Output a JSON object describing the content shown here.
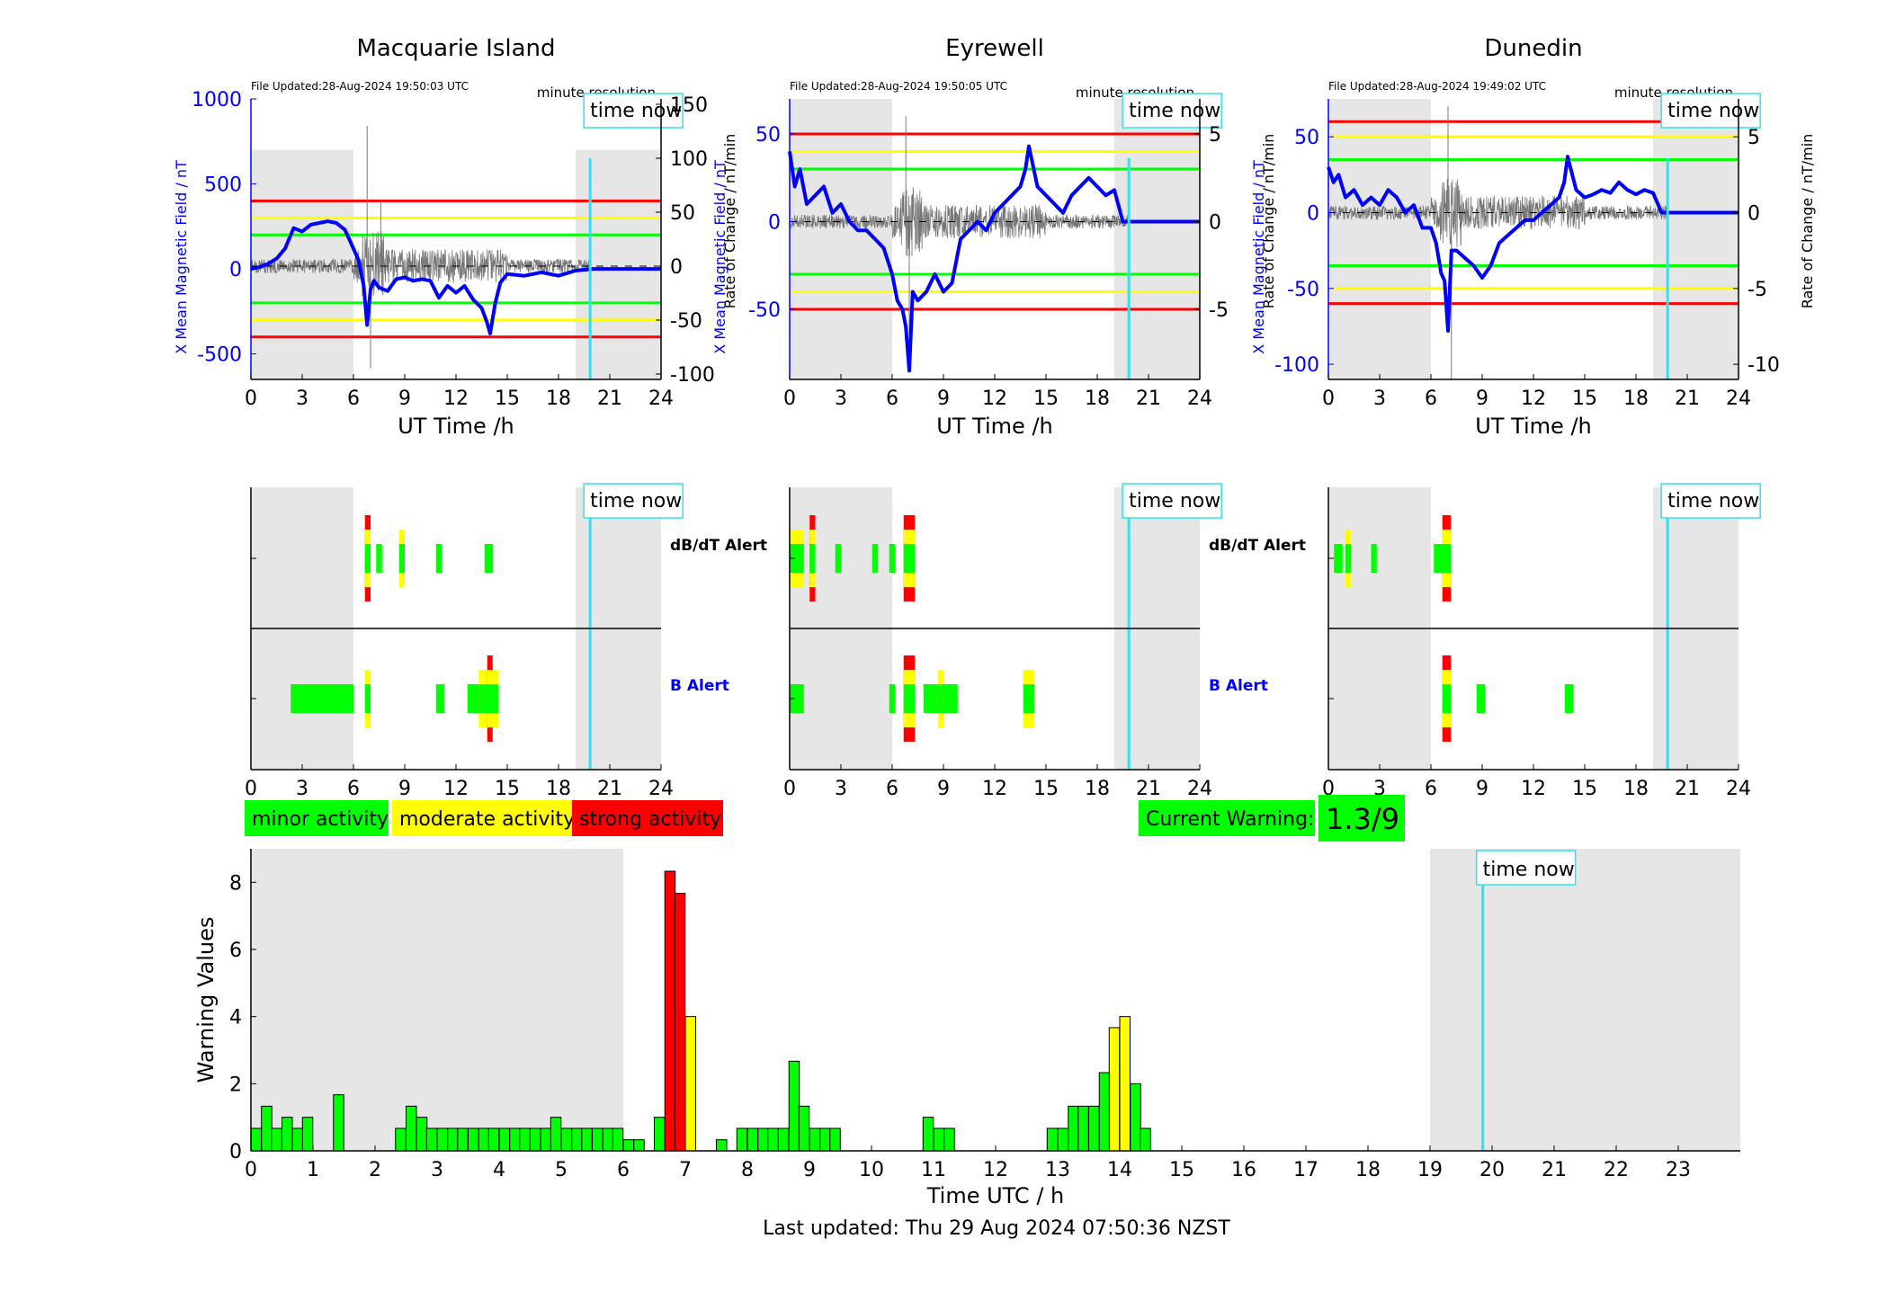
{
  "stations": [
    {
      "name": "Macquarie Island",
      "file_updated": "File Updated:28-Aug-2024 19:50:03 UTC"
    },
    {
      "name": "Eyrewell",
      "file_updated": "File Updated:28-Aug-2024 19:50:05 UTC"
    },
    {
      "name": "Dunedin",
      "file_updated": "File Updated:28-Aug-2024 19:49:02 UTC"
    }
  ],
  "labels": {
    "resolution": "minute resolution",
    "time_now": "time now",
    "ylabel_left": "X Mean Magnetic Field / nT",
    "ylabel_right": "Rate of Change / nT/min",
    "xlabel_top": "UT Time /h",
    "alert_db": "dB/dT Alert",
    "alert_b": "B Alert",
    "xlabel_bottom": "Time UTC / h",
    "ylabel_bottom": "Warning Values",
    "last_updated": "Last updated: Thu 29 Aug 2024 07:50:36 NZST"
  },
  "legend": {
    "minor": "minor activity",
    "moderate": "moderate activity",
    "strong": "strong activity",
    "current_warning_label": "Current Warning:",
    "current_warning_value": "1.3/9"
  },
  "colors": {
    "minor": "#00ff00",
    "moderate": "#ffff00",
    "strong": "#ff0000",
    "time_now": "#33e0f0",
    "field": "#0000ff",
    "shade": "#e6e6e6"
  },
  "time_now_hour": 19.85,
  "night_shading": [
    [
      0,
      6
    ],
    [
      19,
      24
    ]
  ],
  "chart_data": [
    {
      "type": "line",
      "station": "Macquarie Island",
      "xlim": [
        0,
        24
      ],
      "xticks": [
        0,
        3,
        6,
        9,
        12,
        15,
        18,
        21,
        24
      ],
      "ylim_left": [
        -650,
        1000
      ],
      "yticks_left": [
        -500,
        0,
        500,
        1000
      ],
      "ylim_right": [
        -105,
        155
      ],
      "yticks_right": [
        -100,
        -50,
        0,
        50,
        100,
        150
      ],
      "thresholds": {
        "red": [
          400,
          -400
        ],
        "yellow": [
          300,
          -300
        ],
        "green": [
          200,
          -200
        ]
      },
      "field_x": [
        0,
        0.5,
        1,
        1.5,
        2,
        2.5,
        3,
        3.5,
        4,
        4.5,
        5,
        5.5,
        6,
        6.3,
        6.6,
        6.8,
        7,
        7.2,
        7.5,
        8,
        8.5,
        9,
        9.5,
        10,
        10.5,
        11,
        11.5,
        12,
        12.5,
        13,
        13.5,
        13.8,
        14,
        14.3,
        14.6,
        15,
        16,
        17,
        18,
        19,
        20,
        21,
        22,
        23,
        24
      ],
      "field_y": [
        0,
        10,
        30,
        60,
        120,
        240,
        220,
        260,
        270,
        280,
        270,
        230,
        120,
        50,
        -100,
        -330,
        -120,
        -70,
        -110,
        -130,
        -60,
        -50,
        -70,
        -60,
        -70,
        -170,
        -100,
        -140,
        -100,
        -180,
        -230,
        -310,
        -380,
        -200,
        -80,
        -30,
        -40,
        -20,
        -40,
        -10,
        0,
        0,
        0,
        0,
        0
      ],
      "rate_peaks_x": [
        6.8,
        7.0,
        7.6
      ],
      "rate_peaks_y": [
        130,
        -95,
        60
      ]
    },
    {
      "type": "line",
      "station": "Eyrewell",
      "xlim": [
        0,
        24
      ],
      "xticks": [
        0,
        3,
        6,
        9,
        12,
        15,
        18,
        21,
        24
      ],
      "ylim_left": [
        -90,
        70
      ],
      "yticks_left": [
        -50,
        0,
        50
      ],
      "ylim_right": [
        -9,
        7
      ],
      "yticks_right": [
        -5,
        0,
        5
      ],
      "thresholds": {
        "red": [
          50,
          -50
        ],
        "yellow": [
          40,
          -40
        ],
        "green": [
          30,
          -30
        ]
      },
      "field_x": [
        0,
        0.3,
        0.6,
        1,
        1.5,
        2,
        2.5,
        3,
        3.5,
        4,
        4.5,
        5,
        5.5,
        6,
        6.3,
        6.6,
        6.8,
        7,
        7.2,
        7.5,
        8,
        8.5,
        9,
        9.5,
        10,
        10.5,
        11,
        11.5,
        12,
        12.5,
        13,
        13.5,
        13.8,
        14,
        14.5,
        15,
        15.5,
        16,
        16.5,
        17,
        17.5,
        18,
        18.5,
        19,
        19.5,
        20,
        21,
        22,
        23,
        24
      ],
      "field_y": [
        40,
        20,
        30,
        10,
        15,
        20,
        5,
        10,
        0,
        -5,
        -5,
        -10,
        -15,
        -30,
        -45,
        -50,
        -60,
        -85,
        -40,
        -45,
        -40,
        -30,
        -40,
        -35,
        -10,
        -5,
        0,
        -5,
        5,
        10,
        15,
        20,
        30,
        43,
        20,
        15,
        10,
        5,
        15,
        20,
        25,
        20,
        15,
        18,
        0,
        0,
        0,
        0,
        0,
        0
      ],
      "rate_peaks_x": [
        6.8,
        7.0
      ],
      "rate_peaks_y": [
        6,
        -8
      ]
    },
    {
      "type": "line",
      "station": "Dunedin",
      "xlim": [
        0,
        24
      ],
      "xticks": [
        0,
        3,
        6,
        9,
        12,
        15,
        18,
        21,
        24
      ],
      "ylim_left": [
        -110,
        75
      ],
      "yticks_left": [
        -100,
        -50,
        0,
        50
      ],
      "ylim_right": [
        -11,
        7.5
      ],
      "yticks_right": [
        -10,
        -5,
        0,
        5
      ],
      "thresholds": {
        "red": [
          60,
          -60
        ],
        "yellow": [
          50,
          -50
        ],
        "green": [
          35,
          -35
        ]
      },
      "field_x": [
        0,
        0.3,
        0.6,
        1,
        1.5,
        2,
        2.5,
        3,
        3.5,
        4,
        4.5,
        5,
        5.5,
        6,
        6.3,
        6.6,
        6.8,
        7,
        7.2,
        7.5,
        8,
        8.5,
        9,
        9.5,
        10,
        10.5,
        11,
        11.5,
        12,
        12.5,
        13,
        13.5,
        13.8,
        14,
        14.5,
        15,
        15.5,
        16,
        16.5,
        17,
        17.5,
        18,
        18.5,
        19,
        19.5,
        20,
        21,
        22,
        23,
        24
      ],
      "field_y": [
        30,
        20,
        25,
        10,
        15,
        5,
        10,
        5,
        15,
        10,
        0,
        5,
        -10,
        -10,
        -20,
        -40,
        -45,
        -78,
        -25,
        -25,
        -30,
        -35,
        -43,
        -35,
        -20,
        -15,
        -10,
        -5,
        -5,
        0,
        5,
        10,
        20,
        37,
        15,
        10,
        12,
        15,
        13,
        20,
        15,
        12,
        15,
        13,
        0,
        0,
        0,
        0,
        0,
        0
      ],
      "rate_peaks_x": [
        7.0,
        7.2
      ],
      "rate_peaks_y": [
        7,
        -11
      ]
    },
    {
      "type": "bar",
      "title": "",
      "xlabel": "Time UTC / h",
      "ylabel": "Warning Values",
      "xlim": [
        0,
        24
      ],
      "ylim": [
        0,
        9
      ],
      "xticks": [
        0,
        1,
        2,
        3,
        4,
        5,
        6,
        7,
        8,
        9,
        10,
        11,
        12,
        13,
        14,
        15,
        16,
        17,
        18,
        19,
        20,
        21,
        22,
        23
      ],
      "yticks": [
        0,
        2,
        4,
        6,
        8
      ],
      "bar_width_h": 0.1667,
      "bars": [
        {
          "t": 0.0,
          "v": 0.67,
          "c": "g"
        },
        {
          "t": 0.17,
          "v": 1.33,
          "c": "g"
        },
        {
          "t": 0.33,
          "v": 0.67,
          "c": "g"
        },
        {
          "t": 0.5,
          "v": 1.0,
          "c": "g"
        },
        {
          "t": 0.67,
          "v": 0.67,
          "c": "g"
        },
        {
          "t": 0.83,
          "v": 1.0,
          "c": "g"
        },
        {
          "t": 1.33,
          "v": 1.67,
          "c": "g"
        },
        {
          "t": 2.33,
          "v": 0.67,
          "c": "g"
        },
        {
          "t": 2.5,
          "v": 1.33,
          "c": "g"
        },
        {
          "t": 2.67,
          "v": 1.0,
          "c": "g"
        },
        {
          "t": 2.83,
          "v": 0.67,
          "c": "g"
        },
        {
          "t": 3.0,
          "v": 0.67,
          "c": "g"
        },
        {
          "t": 3.17,
          "v": 0.67,
          "c": "g"
        },
        {
          "t": 3.33,
          "v": 0.67,
          "c": "g"
        },
        {
          "t": 3.5,
          "v": 0.67,
          "c": "g"
        },
        {
          "t": 3.67,
          "v": 0.67,
          "c": "g"
        },
        {
          "t": 3.83,
          "v": 0.67,
          "c": "g"
        },
        {
          "t": 4.0,
          "v": 0.67,
          "c": "g"
        },
        {
          "t": 4.17,
          "v": 0.67,
          "c": "g"
        },
        {
          "t": 4.33,
          "v": 0.67,
          "c": "g"
        },
        {
          "t": 4.5,
          "v": 0.67,
          "c": "g"
        },
        {
          "t": 4.67,
          "v": 0.67,
          "c": "g"
        },
        {
          "t": 4.83,
          "v": 1.0,
          "c": "g"
        },
        {
          "t": 5.0,
          "v": 0.67,
          "c": "g"
        },
        {
          "t": 5.17,
          "v": 0.67,
          "c": "g"
        },
        {
          "t": 5.33,
          "v": 0.67,
          "c": "g"
        },
        {
          "t": 5.5,
          "v": 0.67,
          "c": "g"
        },
        {
          "t": 5.67,
          "v": 0.67,
          "c": "g"
        },
        {
          "t": 5.83,
          "v": 0.67,
          "c": "g"
        },
        {
          "t": 6.0,
          "v": 0.33,
          "c": "g"
        },
        {
          "t": 6.17,
          "v": 0.33,
          "c": "g"
        },
        {
          "t": 6.5,
          "v": 1.0,
          "c": "g"
        },
        {
          "t": 6.67,
          "v": 8.33,
          "c": "r"
        },
        {
          "t": 6.83,
          "v": 7.67,
          "c": "r"
        },
        {
          "t": 7.0,
          "v": 4.0,
          "c": "y"
        },
        {
          "t": 7.5,
          "v": 0.33,
          "c": "g"
        },
        {
          "t": 7.83,
          "v": 0.67,
          "c": "g"
        },
        {
          "t": 8.0,
          "v": 0.67,
          "c": "g"
        },
        {
          "t": 8.17,
          "v": 0.67,
          "c": "g"
        },
        {
          "t": 8.33,
          "v": 0.67,
          "c": "g"
        },
        {
          "t": 8.5,
          "v": 0.67,
          "c": "g"
        },
        {
          "t": 8.67,
          "v": 2.67,
          "c": "g"
        },
        {
          "t": 8.83,
          "v": 1.33,
          "c": "g"
        },
        {
          "t": 9.0,
          "v": 0.67,
          "c": "g"
        },
        {
          "t": 9.17,
          "v": 0.67,
          "c": "g"
        },
        {
          "t": 9.33,
          "v": 0.67,
          "c": "g"
        },
        {
          "t": 10.83,
          "v": 1.0,
          "c": "g"
        },
        {
          "t": 11.0,
          "v": 0.67,
          "c": "g"
        },
        {
          "t": 11.17,
          "v": 0.67,
          "c": "g"
        },
        {
          "t": 12.83,
          "v": 0.67,
          "c": "g"
        },
        {
          "t": 13.0,
          "v": 0.67,
          "c": "g"
        },
        {
          "t": 13.17,
          "v": 1.33,
          "c": "g"
        },
        {
          "t": 13.33,
          "v": 1.33,
          "c": "g"
        },
        {
          "t": 13.5,
          "v": 1.33,
          "c": "g"
        },
        {
          "t": 13.67,
          "v": 2.33,
          "c": "g"
        },
        {
          "t": 13.83,
          "v": 3.67,
          "c": "y"
        },
        {
          "t": 14.0,
          "v": 4.0,
          "c": "y"
        },
        {
          "t": 14.17,
          "v": 2.0,
          "c": "g"
        },
        {
          "t": 14.33,
          "v": 0.67,
          "c": "g"
        }
      ]
    }
  ],
  "alerts": [
    {
      "station": "Macquarie Island",
      "dbdt": [
        {
          "t0": 6.67,
          "t1": 7.0,
          "level": "r"
        },
        {
          "t0": 7.33,
          "t1": 7.67,
          "level": "g"
        },
        {
          "t0": 8.67,
          "t1": 9.0,
          "level": "y"
        },
        {
          "t0": 10.83,
          "t1": 11.17,
          "level": "g"
        },
        {
          "t0": 13.67,
          "t1": 14.17,
          "level": "g"
        }
      ],
      "b": [
        {
          "t0": 2.33,
          "t1": 6.0,
          "level": "g"
        },
        {
          "t0": 6.67,
          "t1": 7.0,
          "level": "y"
        },
        {
          "t0": 10.83,
          "t1": 11.33,
          "level": "g"
        },
        {
          "t0": 12.67,
          "t1": 13.33,
          "level": "g"
        },
        {
          "t0": 13.33,
          "t1": 13.83,
          "level": "y"
        },
        {
          "t0": 13.83,
          "t1": 14.0,
          "level": "r"
        },
        {
          "t0": 14.0,
          "t1": 14.5,
          "level": "y"
        }
      ]
    },
    {
      "station": "Eyrewell",
      "dbdt": [
        {
          "t0": 0,
          "t1": 0.5,
          "level": "y"
        },
        {
          "t0": 0.5,
          "t1": 0.83,
          "level": "y"
        },
        {
          "t0": 1.17,
          "t1": 1.5,
          "level": "r"
        },
        {
          "t0": 2.67,
          "t1": 3.0,
          "level": "g"
        },
        {
          "t0": 4.83,
          "t1": 5.17,
          "level": "g"
        },
        {
          "t0": 5.83,
          "t1": 6.17,
          "level": "g"
        },
        {
          "t0": 6.67,
          "t1": 7.33,
          "level": "r"
        }
      ],
      "b": [
        {
          "t0": 0,
          "t1": 0.83,
          "level": "g"
        },
        {
          "t0": 5.83,
          "t1": 6.17,
          "level": "g"
        },
        {
          "t0": 6.67,
          "t1": 7.33,
          "level": "r"
        },
        {
          "t0": 7.83,
          "t1": 8.67,
          "level": "g"
        },
        {
          "t0": 8.67,
          "t1": 9.0,
          "level": "y"
        },
        {
          "t0": 9.0,
          "t1": 9.83,
          "level": "g"
        },
        {
          "t0": 13.67,
          "t1": 14.33,
          "level": "y"
        }
      ]
    },
    {
      "station": "Dunedin",
      "dbdt": [
        {
          "t0": 0.33,
          "t1": 0.83,
          "level": "g"
        },
        {
          "t0": 1.0,
          "t1": 1.33,
          "level": "y"
        },
        {
          "t0": 2.5,
          "t1": 2.83,
          "level": "g"
        },
        {
          "t0": 6.17,
          "t1": 6.67,
          "level": "g"
        },
        {
          "t0": 6.67,
          "t1": 7.17,
          "level": "r"
        }
      ],
      "b": [
        {
          "t0": 6.67,
          "t1": 7.17,
          "level": "r"
        },
        {
          "t0": 8.67,
          "t1": 9.17,
          "level": "g"
        },
        {
          "t0": 13.83,
          "t1": 14.33,
          "level": "g"
        }
      ]
    }
  ]
}
